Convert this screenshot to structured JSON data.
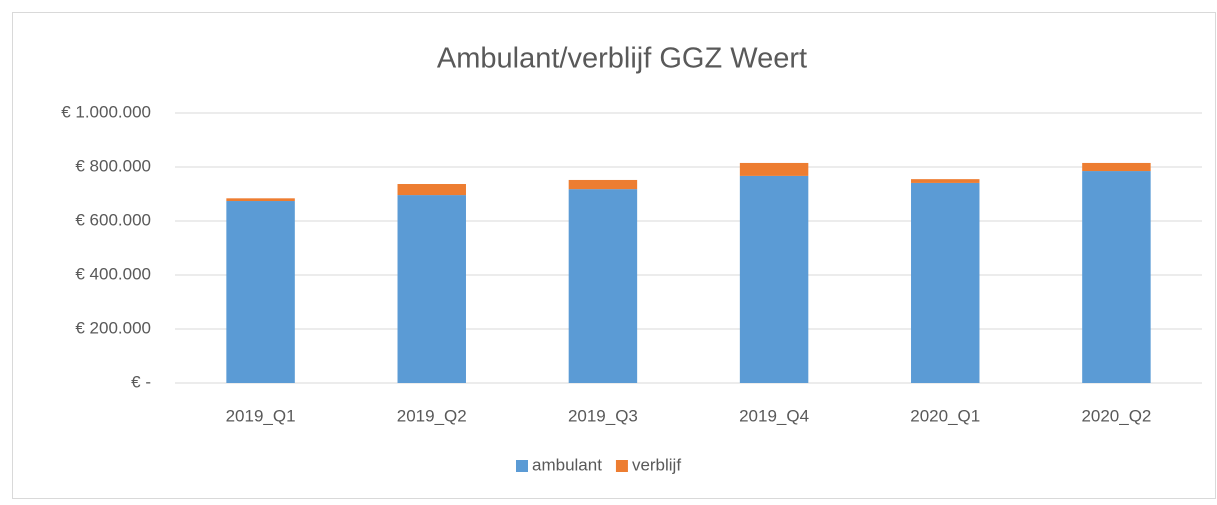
{
  "chart_data": {
    "type": "stacked_bar",
    "title": "Ambulant/verblijf GGZ Weert",
    "categories": [
      "2019_Q1",
      "2019_Q2",
      "2019_Q3",
      "2019_Q4",
      "2020_Q1",
      "2020_Q2"
    ],
    "series": [
      {
        "name": "ambulant",
        "color": "#5b9bd5",
        "values": [
          674000,
          696000,
          718000,
          767000,
          741000,
          785000
        ]
      },
      {
        "name": "verblijf",
        "color": "#ed7d31",
        "values": [
          10000,
          41000,
          34000,
          48000,
          14000,
          30000
        ]
      }
    ],
    "ylim": [
      0,
      1000000
    ],
    "yticks": [
      {
        "value": 0,
        "label": "€ -"
      },
      {
        "value": 200000,
        "label": "€ 200.000"
      },
      {
        "value": 400000,
        "label": "€ 400.000"
      },
      {
        "value": 600000,
        "label": "€ 600.000"
      },
      {
        "value": 800000,
        "label": "€ 800.000"
      },
      {
        "value": 1000000,
        "label": "€ 1.000.000"
      }
    ],
    "grid": true,
    "legend": "bottom"
  }
}
